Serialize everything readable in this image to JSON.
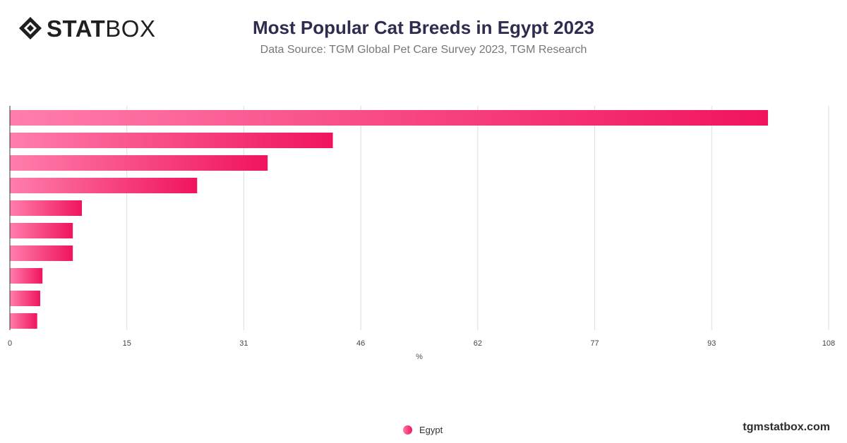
{
  "header": {
    "logo_bold": "STAT",
    "logo_thin": "BOX",
    "title": "Most Popular Cat Breeds in Egypt 2023",
    "subtitle": "Data Source: TGM Global Pet Care Survey 2023, TGM Research"
  },
  "legend": {
    "label": "Egypt"
  },
  "footer": {
    "site": "tgmstatbox.com"
  },
  "colors": {
    "bar_start": "#ff7eab",
    "bar_end": "#f0145e",
    "grid": "#dddddd",
    "axis": "#333333"
  },
  "chart_data": {
    "type": "bar",
    "orientation": "horizontal",
    "title": "Most Popular Cat Breeds in Egypt 2023",
    "xlabel": "%",
    "xlim": [
      0,
      108
    ],
    "xticks": [
      "0",
      "15",
      "31",
      "46",
      "62",
      "77",
      "93",
      "108"
    ],
    "grid": true,
    "legend_position": "bottom",
    "series": [
      {
        "name": "Egypt",
        "values": [
          100,
          42.6,
          34,
          24.7,
          9.5,
          8.3,
          8.3,
          4.3,
          4,
          3.6
        ]
      }
    ]
  }
}
